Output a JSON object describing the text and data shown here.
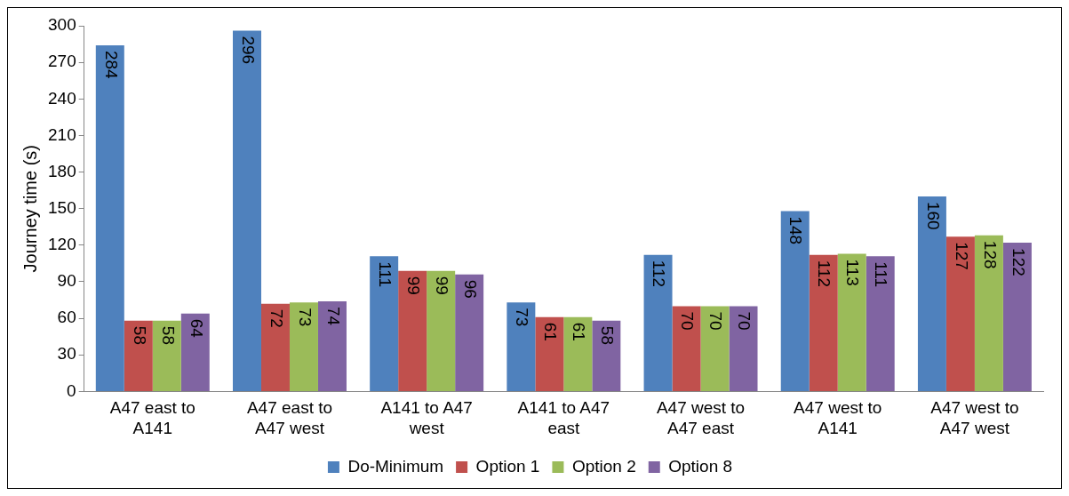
{
  "chart_data": {
    "type": "bar",
    "ylabel": "Journey time (s)",
    "categories": [
      "A47 east to A141",
      "A47 east to A47 west",
      "A141 to A47 west",
      "A141 to A47 east",
      "A47 west to A47 east",
      "A47 west to A141",
      "A47 west to A47 west"
    ],
    "series": [
      {
        "name": "Do-Minimum",
        "color": "#4f81bd",
        "values": [
          284,
          296,
          111,
          73,
          112,
          148,
          160
        ]
      },
      {
        "name": "Option 1",
        "color": "#c0504d",
        "values": [
          58,
          72,
          99,
          61,
          70,
          112,
          127
        ]
      },
      {
        "name": "Option 2",
        "color": "#9bbb59",
        "values": [
          58,
          73,
          99,
          61,
          70,
          113,
          128
        ]
      },
      {
        "name": "Option 8",
        "color": "#8064a2",
        "values": [
          64,
          74,
          96,
          58,
          70,
          111,
          122
        ]
      }
    ],
    "ylim": [
      0,
      300
    ],
    "yticks": [
      0,
      30,
      60,
      90,
      120,
      150,
      180,
      210,
      240,
      270,
      300
    ],
    "grid": false,
    "legend": "bottom",
    "data_labels": true
  }
}
